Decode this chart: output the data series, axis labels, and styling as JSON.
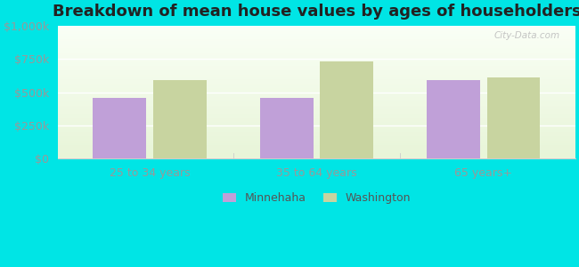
{
  "title": "Breakdown of mean house values by ages of householders",
  "categories": [
    "25 to 34 years",
    "35 to 64 years",
    "65 years+"
  ],
  "series": {
    "Minnehaha": [
      460000,
      455000,
      590000
    ],
    "Washington": [
      590000,
      730000,
      610000
    ]
  },
  "bar_colors": {
    "Minnehaha": "#c0a0d8",
    "Washington": "#c8d4a0"
  },
  "ylim": [
    0,
    1000000
  ],
  "yticks": [
    0,
    250000,
    500000,
    750000,
    1000000
  ],
  "ytick_labels": [
    "$0",
    "$250k",
    "$500k",
    "$750k",
    "$1,000k"
  ],
  "background_color": "#00e5e5",
  "bar_width": 0.32,
  "title_fontsize": 13,
  "tick_fontsize": 9,
  "legend_fontsize": 9,
  "watermark": "City-Data.com"
}
